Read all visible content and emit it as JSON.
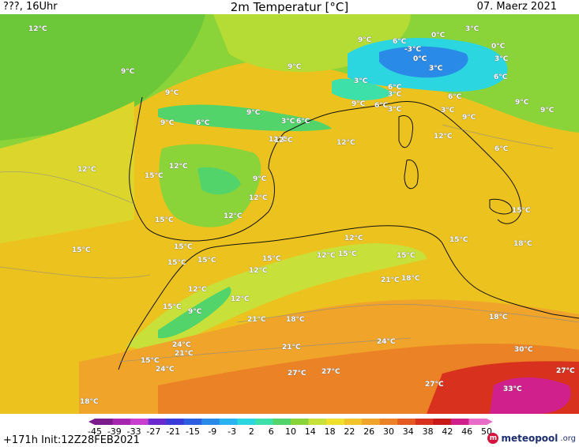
{
  "header": {
    "left": "???, 16Uhr",
    "title": "2m Temperatur [°C]",
    "date": "07. Maerz 2021"
  },
  "footer": {
    "run_info": "+171h Init:12Z28FEB2021",
    "logo_name": "meteopool",
    "logo_suffix": ".org"
  },
  "colorbar": {
    "ticks": [
      "-45",
      "-39",
      "-33",
      "-27",
      "-21",
      "-15",
      "-9",
      "-3",
      "2",
      "6",
      "10",
      "14",
      "18",
      "22",
      "26",
      "30",
      "34",
      "38",
      "42",
      "46",
      "50"
    ],
    "colors": [
      "#7a1c8c",
      "#a626b0",
      "#c83fd0",
      "#6a2ad0",
      "#3a3ad8",
      "#2c5fe0",
      "#2a8ae8",
      "#28b4f0",
      "#2cd6e0",
      "#3ce0a8",
      "#52d46a",
      "#8ad43a",
      "#c8e03a",
      "#f0e02e",
      "#f2c42c",
      "#f0a42a",
      "#ec8226",
      "#e45a22",
      "#d8321e",
      "#c81818",
      "#d0208c",
      "#e86cc8"
    ],
    "unit": "°C"
  },
  "map_labels": [
    {
      "t": "12°C"
    },
    {
      "t": "9°C"
    },
    {
      "t": "9°C"
    },
    {
      "t": "9°C"
    },
    {
      "t": "6°C"
    },
    {
      "t": "0°C"
    },
    {
      "t": "3°C"
    },
    {
      "t": "-3°C"
    },
    {
      "t": "0°C"
    },
    {
      "t": "0°C"
    },
    {
      "t": "3°C"
    },
    {
      "t": "9°C"
    },
    {
      "t": "3°C"
    },
    {
      "t": "3°C"
    },
    {
      "t": "6°C"
    },
    {
      "t": "3°C"
    },
    {
      "t": "6°C"
    },
    {
      "t": "9°C"
    },
    {
      "t": "6°C"
    },
    {
      "t": "3°C"
    },
    {
      "t": "6°C"
    },
    {
      "t": "3°C"
    },
    {
      "t": "9°C"
    },
    {
      "t": "9°C"
    },
    {
      "t": "9°C"
    },
    {
      "t": "6°C"
    },
    {
      "t": "3°C"
    },
    {
      "t": "6°C"
    },
    {
      "t": "9°C"
    },
    {
      "t": "9°C"
    },
    {
      "t": "12°C"
    },
    {
      "t": "12°C"
    },
    {
      "t": "12°C"
    },
    {
      "t": "12°C"
    },
    {
      "t": "6°C"
    },
    {
      "t": "12°C"
    },
    {
      "t": "15°C"
    },
    {
      "t": "9°C"
    },
    {
      "t": "12°C"
    },
    {
      "t": "12°C"
    },
    {
      "t": "15°C"
    },
    {
      "t": "15°C"
    },
    {
      "t": "15°C"
    },
    {
      "t": "15°C"
    },
    {
      "t": "15°C"
    },
    {
      "t": "15°C"
    },
    {
      "t": "12°C"
    },
    {
      "t": "15°C"
    },
    {
      "t": "12°C"
    },
    {
      "t": "12°C"
    },
    {
      "t": "15°C"
    },
    {
      "t": "15°C"
    },
    {
      "t": "21°C"
    },
    {
      "t": "18°C"
    },
    {
      "t": "12°C"
    },
    {
      "t": "15°C"
    },
    {
      "t": "12°C"
    },
    {
      "t": "12°C"
    },
    {
      "t": "9°C"
    },
    {
      "t": "15°C"
    },
    {
      "t": "18°C"
    },
    {
      "t": "21°C"
    },
    {
      "t": "18°C"
    },
    {
      "t": "24°C"
    },
    {
      "t": "18°C"
    },
    {
      "t": "21°C"
    },
    {
      "t": "15°C"
    },
    {
      "t": "24°C"
    },
    {
      "t": "21°C"
    },
    {
      "t": "27°C"
    },
    {
      "t": "27°C"
    },
    {
      "t": "24°C"
    },
    {
      "t": "27°C"
    },
    {
      "t": "30°C"
    },
    {
      "t": "27°C"
    },
    {
      "t": "33°C"
    },
    {
      "t": "18°C"
    }
  ]
}
